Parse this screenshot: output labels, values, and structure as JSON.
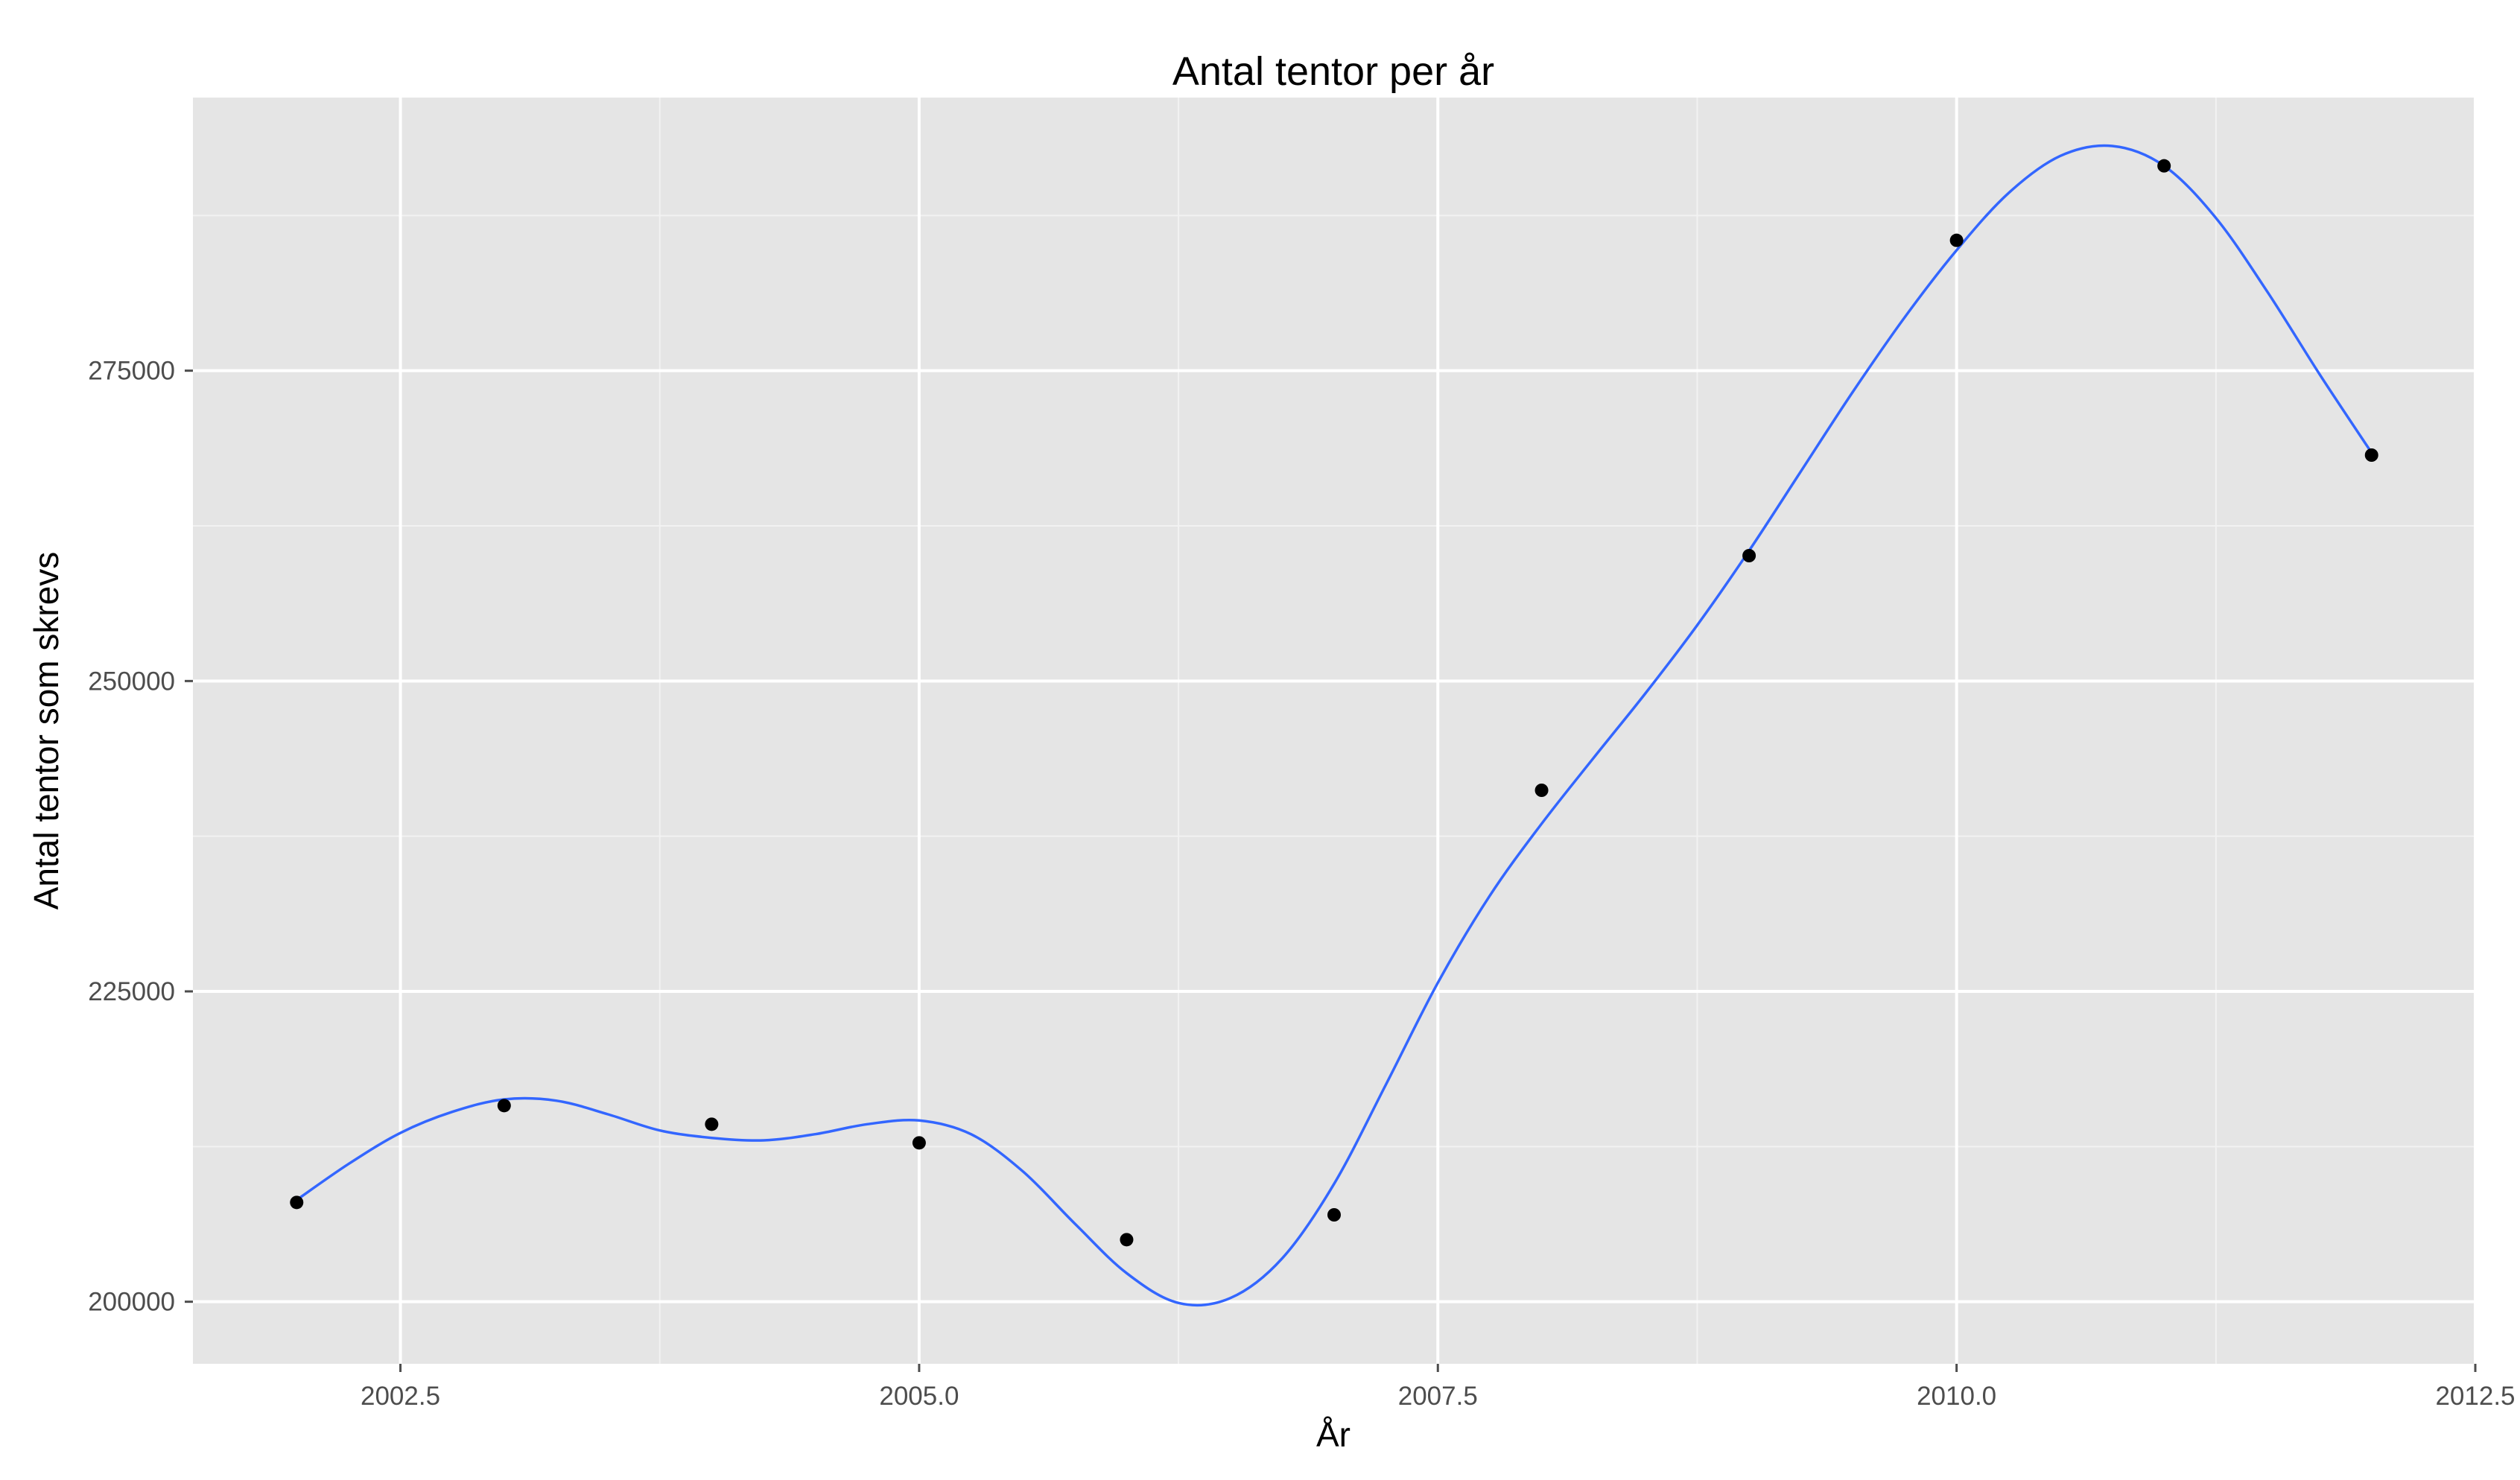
{
  "chart_data": {
    "type": "scatter",
    "title": "Antal tentor per år",
    "xlabel": "År",
    "ylabel": "Antal tentor som skrevs",
    "xlim": [
      2001.5,
      2012.5
    ],
    "ylim": [
      195000,
      297000
    ],
    "x_ticks": [
      2002.5,
      2005.0,
      2007.5,
      2010.0,
      2012.5
    ],
    "x_tick_labels": [
      "2002.5",
      "2005.0",
      "2007.5",
      "2010.0",
      "2012.5"
    ],
    "y_ticks": [
      200000,
      225000,
      250000,
      275000
    ],
    "y_tick_labels": [
      "200000",
      "225000",
      "250000",
      "275000"
    ],
    "grid": true,
    "legend": "none",
    "series": [
      {
        "kind": "points",
        "color": "#000000",
        "x": [
          2002,
          2003,
          2004,
          2005,
          2006,
          2007,
          2008,
          2009,
          2010,
          2011,
          2012
        ],
        "y": [
          208000,
          215800,
          214300,
          212800,
          205000,
          207000,
          241200,
          260100,
          285500,
          291500,
          268200
        ]
      },
      {
        "kind": "smooth-line",
        "color": "#3366ff",
        "x": [
          2002,
          2002.25,
          2002.5,
          2002.75,
          2003,
          2003.25,
          2003.5,
          2003.75,
          2004,
          2004.25,
          2004.5,
          2004.75,
          2005,
          2005.25,
          2005.5,
          2005.75,
          2006,
          2006.25,
          2006.5,
          2006.75,
          2007,
          2007.25,
          2007.5,
          2007.75,
          2008,
          2008.25,
          2008.5,
          2008.75,
          2009,
          2009.25,
          2009.5,
          2009.75,
          2010,
          2010.25,
          2010.5,
          2010.75,
          2011,
          2011.25,
          2011.5,
          2011.75,
          2012
        ],
        "y": [
          208200,
          211100,
          213600,
          215300,
          216300,
          216200,
          215100,
          213800,
          213200,
          213000,
          213500,
          214300,
          214600,
          213500,
          210500,
          206300,
          202300,
          199900,
          200300,
          203500,
          209500,
          217500,
          225700,
          232700,
          238500,
          243800,
          249000,
          254500,
          260500,
          266900,
          273300,
          279300,
          284700,
          289300,
          292300,
          293100,
          291500,
          287300,
          281300,
          274700,
          268400
        ]
      }
    ]
  }
}
